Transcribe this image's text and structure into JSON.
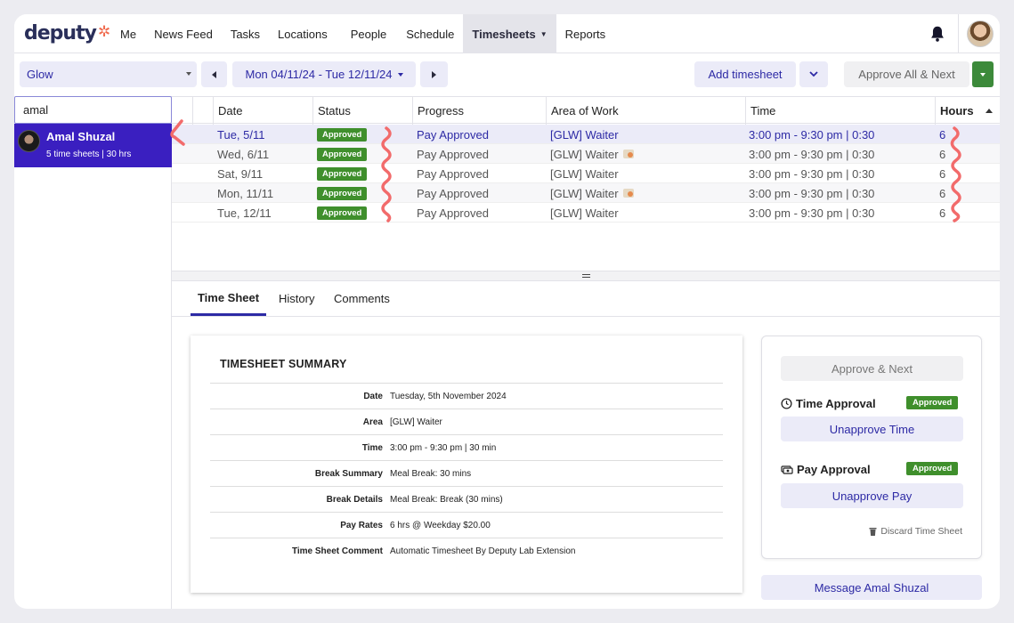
{
  "nav": {
    "logo": "deputy",
    "items": [
      "Me",
      "News Feed",
      "Tasks",
      "Locations",
      "People",
      "Schedule",
      "Timesheets",
      "Reports"
    ],
    "active": "Timesheets"
  },
  "toolbar": {
    "location": "Glow",
    "date_range": "Mon 04/11/24 - Tue 12/11/24",
    "add_timesheet": "Add timesheet",
    "approve_all_next": "Approve All & Next"
  },
  "search": {
    "value": "amal"
  },
  "employee": {
    "name": "Amal Shuzal",
    "summary": "5 time sheets | 30 hrs"
  },
  "table": {
    "headers": [
      "Date",
      "Status",
      "Progress",
      "Area of Work",
      "Time",
      "Hours"
    ],
    "rows": [
      {
        "date": "Tue, 5/11",
        "status": "Approved",
        "progress": "Pay Approved",
        "area": "[GLW] Waiter",
        "time": "3:00 pm - 9:30 pm | 0:30",
        "hours": "6",
        "selected": true,
        "cash_icon": false
      },
      {
        "date": "Wed, 6/11",
        "status": "Approved",
        "progress": "Pay Approved",
        "area": "[GLW] Waiter",
        "time": "3:00 pm - 9:30 pm | 0:30",
        "hours": "6",
        "selected": false,
        "cash_icon": true
      },
      {
        "date": "Sat, 9/11",
        "status": "Approved",
        "progress": "Pay Approved",
        "area": "[GLW] Waiter",
        "time": "3:00 pm - 9:30 pm | 0:30",
        "hours": "6",
        "selected": false,
        "cash_icon": false
      },
      {
        "date": "Mon, 11/11",
        "status": "Approved",
        "progress": "Pay Approved",
        "area": "[GLW] Waiter",
        "time": "3:00 pm - 9:30 pm | 0:30",
        "hours": "6",
        "selected": false,
        "cash_icon": true
      },
      {
        "date": "Tue, 12/11",
        "status": "Approved",
        "progress": "Pay Approved",
        "area": "[GLW] Waiter",
        "time": "3:00 pm - 9:30 pm | 0:30",
        "hours": "6",
        "selected": false,
        "cash_icon": false
      }
    ]
  },
  "tabs": [
    "Time Sheet",
    "History",
    "Comments"
  ],
  "summary": {
    "title": "TIMESHEET SUMMARY",
    "rows": [
      {
        "label": "Date",
        "value": "Tuesday, 5th November 2024"
      },
      {
        "label": "Area",
        "value": "[GLW] Waiter"
      },
      {
        "label": "Time",
        "value": "3:00 pm - 9:30 pm | 30 min"
      },
      {
        "label": "Break Summary",
        "value": "Meal Break: 30 mins"
      },
      {
        "label": "Break Details",
        "value": "Meal Break: Break (30 mins)"
      },
      {
        "label": "Pay Rates",
        "value": "6 hrs @ Weekday $20.00"
      },
      {
        "label": "Time Sheet Comment",
        "value": "Automatic Timesheet By Deputy Lab Extension"
      }
    ]
  },
  "approval": {
    "approve_next": "Approve & Next",
    "time_label": "Time Approval",
    "time_badge": "Approved",
    "unapprove_time": "Unapprove Time",
    "pay_label": "Pay Approval",
    "pay_badge": "Approved",
    "unapprove_pay": "Unapprove Pay",
    "discard": "Discard Time Sheet",
    "message": "Message Amal Shuzal"
  },
  "colors": {
    "accent": "#2d2aa5",
    "selected_employee": "#3a1fc0",
    "approved_badge": "#3f8f2c",
    "annotation": "#f26b6b"
  }
}
